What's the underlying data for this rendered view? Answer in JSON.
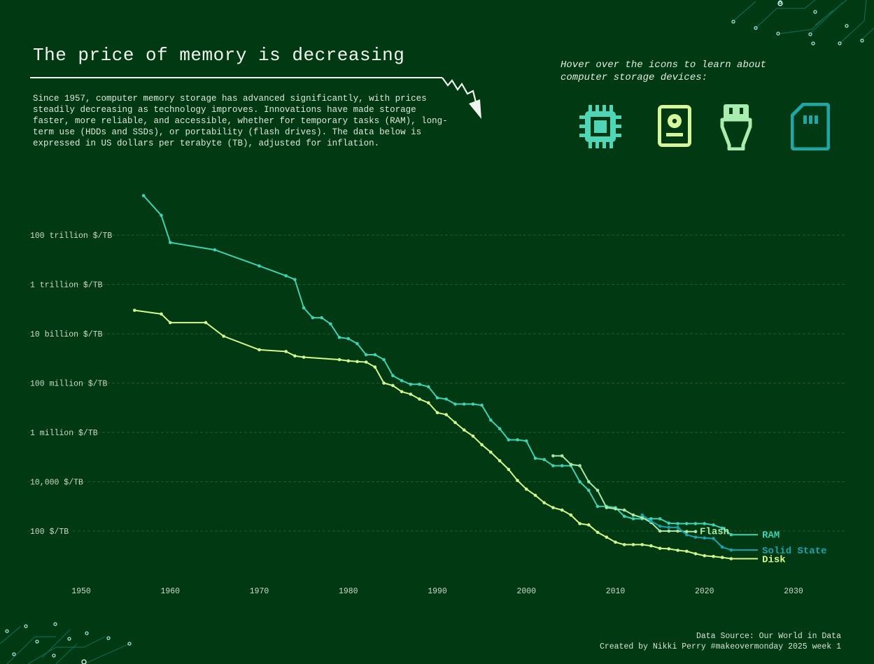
{
  "header": {
    "title": "The price of memory is decreasing",
    "description": "Since 1957, computer memory storage has advanced significantly, with prices steadily decreasing as technology improves. Innovations have made storage faster, more reliable, and accessible, whether for temporary tasks (RAM), long-term use (HDDs and SSDs), or portability (flash drives). The data below is expressed in US dollars per terabyte (TB), adjusted for inflation."
  },
  "icons_panel": {
    "hint": "Hover over the icons to learn about computer storage devices:",
    "icons": [
      {
        "name": "cpu-chip-icon",
        "color": "#4fd6b6"
      },
      {
        "name": "hard-disk-icon",
        "color": "#d7f59a"
      },
      {
        "name": "usb-flash-drive-icon",
        "color": "#a9ecb0"
      },
      {
        "name": "sd-card-icon",
        "color": "#1fa6a6"
      }
    ]
  },
  "footer": {
    "source": "Data Source: Our World in Data",
    "credit": "Created by Nikki Perry #makeovermonday 2025 week 1"
  },
  "colors": {
    "background": "#003912",
    "ram": "#3fd1b3",
    "flash": "#a6e9a8",
    "solid_state": "#1aa3b0",
    "disk": "#d4f88e",
    "grid": "#1f5a2a"
  },
  "chart_data": {
    "type": "line",
    "yscale": "log10",
    "xlim": [
      1950,
      2030
    ],
    "ylim_log10": [
      1.0,
      15.8
    ],
    "x_ticks": [
      1950,
      1960,
      1970,
      1980,
      1990,
      2000,
      2010,
      2020,
      2030
    ],
    "y_ticks": [
      {
        "log10": 14,
        "label": "100 trillion $/TB"
      },
      {
        "log10": 12,
        "label": "1 trillion $/TB"
      },
      {
        "log10": 10,
        "label": "10 billion $/TB"
      },
      {
        "log10": 8,
        "label": "100 million $/TB"
      },
      {
        "log10": 6,
        "label": "1 million $/TB"
      },
      {
        "log10": 4,
        "label": "10,000 $/TB"
      },
      {
        "log10": 2,
        "label": "100 $/TB"
      }
    ],
    "grid": true,
    "series": [
      {
        "name": "RAM",
        "color": "#3fd1b3",
        "label_x": 2026,
        "points": [
          [
            1957,
            15.6
          ],
          [
            1959,
            14.8
          ],
          [
            1960,
            13.7
          ],
          [
            1965,
            13.4
          ],
          [
            1970,
            12.75
          ],
          [
            1973,
            12.35
          ],
          [
            1974,
            12.2
          ],
          [
            1975,
            11.05
          ],
          [
            1976,
            10.65
          ],
          [
            1977,
            10.65
          ],
          [
            1978,
            10.4
          ],
          [
            1979,
            9.85
          ],
          [
            1980,
            9.8
          ],
          [
            1981,
            9.6
          ],
          [
            1982,
            9.15
          ],
          [
            1983,
            9.15
          ],
          [
            1984,
            8.95
          ],
          [
            1985,
            8.3
          ],
          [
            1986,
            8.1
          ],
          [
            1987,
            7.95
          ],
          [
            1988,
            7.95
          ],
          [
            1989,
            7.85
          ],
          [
            1990,
            7.4
          ],
          [
            1991,
            7.35
          ],
          [
            1992,
            7.15
          ],
          [
            1993,
            7.15
          ],
          [
            1994,
            7.15
          ],
          [
            1995,
            7.1
          ],
          [
            1996,
            6.5
          ],
          [
            1997,
            6.15
          ],
          [
            1998,
            5.7
          ],
          [
            1999,
            5.7
          ],
          [
            2000,
            5.65
          ],
          [
            2001,
            4.95
          ],
          [
            2002,
            4.9
          ],
          [
            2003,
            4.65
          ],
          [
            2004,
            4.65
          ],
          [
            2005,
            4.65
          ],
          [
            2006,
            4.0
          ],
          [
            2007,
            3.65
          ],
          [
            2008,
            3.0
          ],
          [
            2009,
            3.0
          ],
          [
            2010,
            2.95
          ],
          [
            2011,
            2.6
          ],
          [
            2012,
            2.5
          ],
          [
            2013,
            2.5
          ],
          [
            2014,
            2.5
          ],
          [
            2015,
            2.5
          ],
          [
            2016,
            2.32
          ],
          [
            2017,
            2.3
          ],
          [
            2018,
            2.3
          ],
          [
            2019,
            2.3
          ],
          [
            2020,
            2.3
          ],
          [
            2021,
            2.25
          ],
          [
            2022,
            2.12
          ],
          [
            2023,
            1.85
          ],
          [
            2026,
            1.85
          ]
        ]
      },
      {
        "name": "Flash",
        "color": "#a6e9a8",
        "label_x": 2020,
        "points": [
          [
            2003,
            5.05
          ],
          [
            2004,
            5.05
          ],
          [
            2005,
            4.7
          ],
          [
            2006,
            4.65
          ],
          [
            2007,
            4.0
          ],
          [
            2008,
            3.65
          ],
          [
            2009,
            2.95
          ],
          [
            2010,
            2.9
          ],
          [
            2011,
            2.85
          ],
          [
            2012,
            2.65
          ],
          [
            2013,
            2.55
          ],
          [
            2014,
            2.35
          ],
          [
            2015,
            2.0
          ],
          [
            2016,
            2.0
          ],
          [
            2017,
            2.0
          ],
          [
            2018,
            1.98
          ],
          [
            2019,
            1.98
          ]
        ]
      },
      {
        "name": "Solid State",
        "color": "#1aa3b0",
        "label_x": 2026,
        "points": [
          [
            2013,
            2.65
          ],
          [
            2014,
            2.4
          ],
          [
            2015,
            2.2
          ],
          [
            2016,
            2.15
          ],
          [
            2017,
            2.15
          ],
          [
            2018,
            1.85
          ],
          [
            2019,
            1.75
          ],
          [
            2020,
            1.72
          ],
          [
            2021,
            1.7
          ],
          [
            2022,
            1.35
          ],
          [
            2023,
            1.23
          ],
          [
            2026,
            1.23
          ]
        ]
      },
      {
        "name": "Disk",
        "color": "#d4f88e",
        "label_x": 2026,
        "points": [
          [
            1956,
            10.95
          ],
          [
            1959,
            10.8
          ],
          [
            1960,
            10.45
          ],
          [
            1964,
            10.45
          ],
          [
            1966,
            9.9
          ],
          [
            1970,
            9.35
          ],
          [
            1973,
            9.28
          ],
          [
            1974,
            9.1
          ],
          [
            1975,
            9.05
          ],
          [
            1979,
            8.95
          ],
          [
            1980,
            8.9
          ],
          [
            1981,
            8.87
          ],
          [
            1982,
            8.85
          ],
          [
            1983,
            8.65
          ],
          [
            1984,
            8.0
          ],
          [
            1985,
            7.9
          ],
          [
            1986,
            7.65
          ],
          [
            1987,
            7.55
          ],
          [
            1988,
            7.35
          ],
          [
            1989,
            7.2
          ],
          [
            1990,
            6.8
          ],
          [
            1991,
            6.72
          ],
          [
            1992,
            6.4
          ],
          [
            1993,
            6.1
          ],
          [
            1994,
            5.85
          ],
          [
            1995,
            5.5
          ],
          [
            1996,
            5.2
          ],
          [
            1997,
            4.85
          ],
          [
            1998,
            4.5
          ],
          [
            1999,
            4.05
          ],
          [
            2000,
            3.7
          ],
          [
            2001,
            3.45
          ],
          [
            2002,
            3.15
          ],
          [
            2003,
            2.95
          ],
          [
            2004,
            2.85
          ],
          [
            2005,
            2.65
          ],
          [
            2006,
            2.3
          ],
          [
            2007,
            2.25
          ],
          [
            2008,
            1.95
          ],
          [
            2009,
            1.75
          ],
          [
            2010,
            1.55
          ],
          [
            2011,
            1.45
          ],
          [
            2012,
            1.45
          ],
          [
            2013,
            1.45
          ],
          [
            2014,
            1.4
          ],
          [
            2015,
            1.3
          ],
          [
            2016,
            1.28
          ],
          [
            2017,
            1.22
          ],
          [
            2018,
            1.18
          ],
          [
            2019,
            1.08
          ],
          [
            2020,
            1.0
          ],
          [
            2021,
            0.97
          ],
          [
            2022,
            0.93
          ],
          [
            2023,
            0.88
          ],
          [
            2026,
            0.88
          ]
        ]
      }
    ]
  }
}
